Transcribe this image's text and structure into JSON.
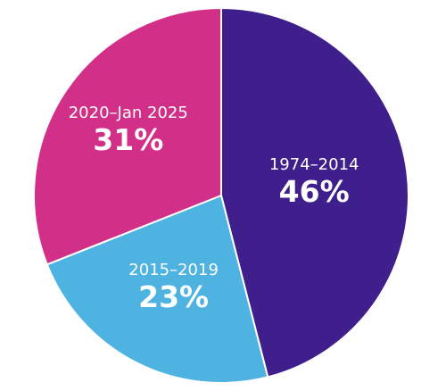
{
  "chart_data": {
    "type": "pie",
    "title": "",
    "slices": [
      {
        "label": "1974–2014",
        "value": 46,
        "display": "46%",
        "color": "#3f1f8c"
      },
      {
        "label": "2015–2019",
        "value": 23,
        "display": "23%",
        "color": "#4fb3e2"
      },
      {
        "label": "2020–Jan 2025",
        "value": 31,
        "display": "31%",
        "color": "#d12f88"
      }
    ]
  }
}
